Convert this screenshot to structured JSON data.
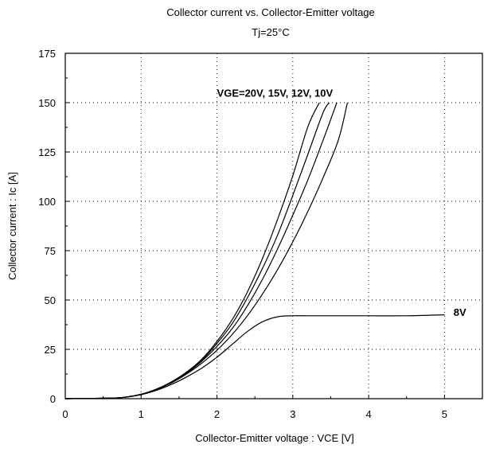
{
  "chart_data": {
    "type": "line",
    "title": "Collector current  vs.  Collector-Emitter  voltage",
    "subtitle": "Tj=25°C",
    "xlabel": "Collector-Emitter  voltage  :  VCE [V]",
    "ylabel": "Collector  current  :  Ic [A]",
    "xlim": [
      0,
      5.5
    ],
    "ylim": [
      0,
      175
    ],
    "xticks": [
      0,
      1,
      2,
      3,
      4,
      5
    ],
    "yticks": [
      0,
      25,
      50,
      75,
      100,
      125,
      150,
      175
    ],
    "grid": true,
    "annotations": [
      {
        "text": "VGE=20V, 15V, 12V, 10V",
        "x": 2.0,
        "y": 153
      },
      {
        "text": "8V",
        "x": 5.12,
        "y": 42
      }
    ],
    "series": [
      {
        "x": [
          0,
          0.6,
          0.8,
          1.0,
          1.2,
          1.4,
          1.6,
          1.8,
          2.0,
          2.2,
          2.4,
          2.6,
          2.8,
          3.0,
          3.2,
          3.35
        ],
        "y": [
          0,
          0.3,
          0.8,
          2.2,
          4.8,
          8.5,
          13.5,
          20,
          29,
          40,
          54,
          71,
          91,
          113,
          138,
          150
        ]
      },
      {
        "x": [
          0,
          0.6,
          0.8,
          1.0,
          1.2,
          1.4,
          1.6,
          1.8,
          2.0,
          2.2,
          2.4,
          2.6,
          2.8,
          3.0,
          3.2,
          3.4,
          3.48
        ],
        "y": [
          0,
          0.3,
          0.8,
          2.2,
          4.8,
          8.5,
          13.3,
          19.5,
          28,
          38,
          51,
          66,
          83,
          103,
          124,
          145,
          150
        ]
      },
      {
        "x": [
          0,
          0.6,
          0.8,
          1.0,
          1.2,
          1.4,
          1.6,
          1.8,
          2.0,
          2.2,
          2.4,
          2.6,
          2.8,
          3.0,
          3.2,
          3.4,
          3.58
        ],
        "y": [
          0,
          0.3,
          0.8,
          2.2,
          4.7,
          8.3,
          13,
          19,
          26.5,
          35.5,
          47,
          60.5,
          76,
          93,
          111,
          131,
          150
        ]
      },
      {
        "x": [
          0,
          0.6,
          0.8,
          1.0,
          1.2,
          1.4,
          1.6,
          1.8,
          2.0,
          2.2,
          2.4,
          2.6,
          2.8,
          3.0,
          3.2,
          3.4,
          3.6,
          3.72
        ],
        "y": [
          0,
          0.3,
          0.8,
          2.2,
          4.6,
          8,
          12.5,
          18,
          24.5,
          32.5,
          42,
          53,
          65.5,
          79.5,
          95,
          112,
          131,
          150
        ]
      },
      {
        "x": [
          0,
          0.6,
          0.8,
          1.0,
          1.2,
          1.4,
          1.6,
          1.8,
          2.0,
          2.2,
          2.4,
          2.6,
          2.8,
          3.0,
          3.2,
          3.5,
          4.0,
          4.5,
          5.0
        ],
        "y": [
          0,
          0.3,
          0.8,
          2.0,
          4.2,
          7.2,
          11,
          15.5,
          21,
          27.5,
          34,
          39,
          41.5,
          42,
          42,
          42,
          42,
          42,
          42.5
        ]
      }
    ]
  }
}
